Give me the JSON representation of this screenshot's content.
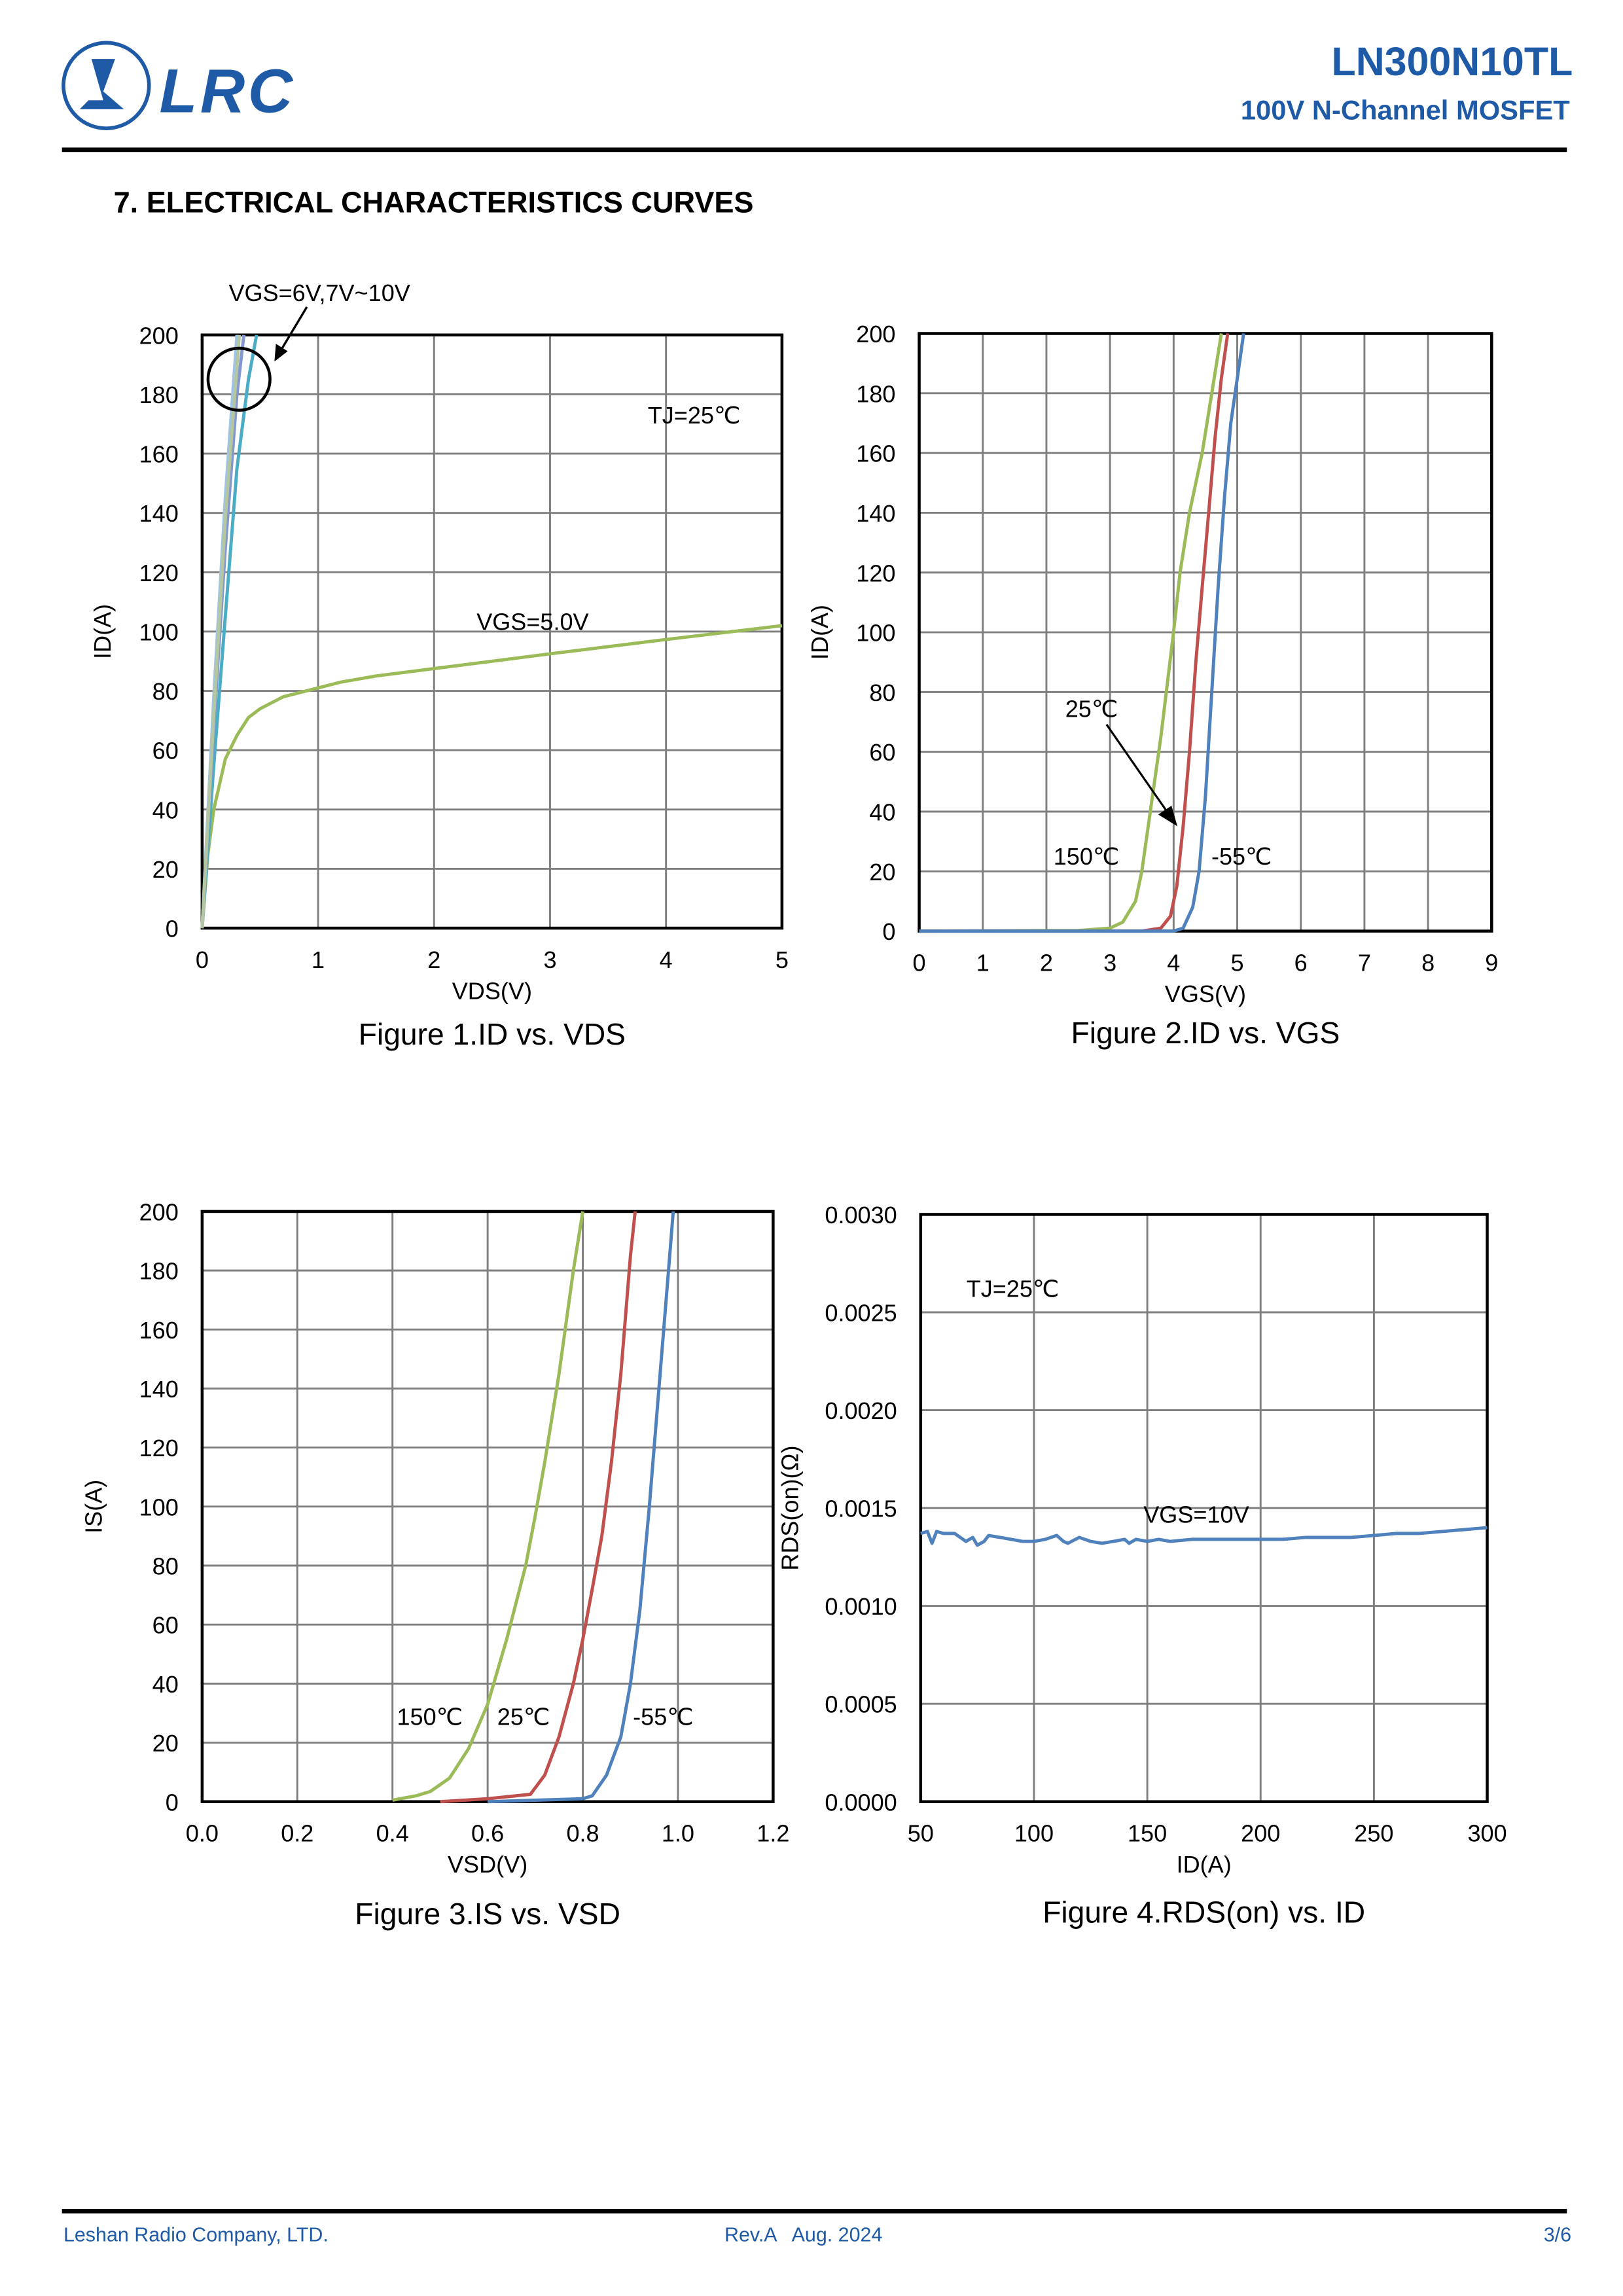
{
  "header": {
    "logo_text": "LRC",
    "part_number": "LN300N10TL",
    "subtitle": "100V N-Channel MOSFET",
    "brand_color": "#1f5aa6"
  },
  "section_title": "7. ELECTRICAL CHARACTERISTICS CURVES",
  "footer": {
    "company": "Leshan Radio Company, LTD.",
    "revision": "Rev.A   Aug. 2024",
    "page": "3/6"
  },
  "chart_data": [
    {
      "type": "line",
      "title": "Figure 1.ID vs. VDS",
      "xlabel": "VDS(V)",
      "ylabel": "ID(A)",
      "xlim": [
        0,
        5
      ],
      "ylim": [
        0,
        200
      ],
      "xticks": [
        "0",
        "1",
        "2",
        "3",
        "4",
        "5"
      ],
      "yticks": [
        "0",
        "20",
        "40",
        "60",
        "80",
        "100",
        "120",
        "140",
        "160",
        "180",
        "200"
      ],
      "grid": true,
      "annotations": [
        "VGS=6V,7V~10V",
        "TJ=25℃",
        "VGS=5.0V"
      ],
      "series": [
        {
          "color": "#9bbb59",
          "x": [
            0,
            0.05,
            0.1,
            0.2,
            0.3,
            0.4,
            0.5,
            0.7,
            1.0,
            1.2,
            1.5,
            2,
            3,
            4,
            5
          ],
          "y": [
            0,
            25,
            40,
            57,
            65,
            71,
            74,
            78,
            81,
            83,
            85,
            87.5,
            92.5,
            97.3,
            102
          ]
        },
        {
          "color": "#4bacc6",
          "x": [
            0,
            0.1,
            0.2,
            0.3,
            0.4,
            0.47
          ],
          "y": [
            0,
            55,
            105,
            155,
            185,
            200
          ]
        },
        {
          "color": "#8497d0",
          "x": [
            0,
            0.1,
            0.2,
            0.3,
            0.36
          ],
          "y": [
            0,
            68,
            128,
            180,
            200
          ]
        },
        {
          "color": "#a5a5a5",
          "x": [
            0,
            0.1,
            0.2,
            0.31
          ],
          "y": [
            0,
            75,
            140,
            200
          ]
        },
        {
          "color": "#9dc3e6",
          "x": [
            0,
            0.1,
            0.2,
            0.3
          ],
          "y": [
            0,
            78,
            145,
            200
          ]
        },
        {
          "color": "#b4c7a0",
          "x": [
            0,
            0.1,
            0.2,
            0.32
          ],
          "y": [
            0,
            72,
            138,
            200
          ]
        }
      ]
    },
    {
      "type": "line",
      "title": "Figure 2.ID vs. VGS",
      "xlabel": "VGS(V)",
      "ylabel": "ID(A)",
      "xlim": [
        0,
        9
      ],
      "ylim": [
        0,
        200
      ],
      "xticks": [
        "0",
        "1",
        "2",
        "3",
        "4",
        "5",
        "6",
        "7",
        "8",
        "9"
      ],
      "yticks": [
        "0",
        "20",
        "40",
        "60",
        "80",
        "100",
        "120",
        "140",
        "160",
        "180",
        "200"
      ],
      "grid": true,
      "annotations": [
        "25℃",
        "150℃",
        "-55℃"
      ],
      "series": [
        {
          "name": "150℃",
          "color": "#9bbb59",
          "x": [
            0,
            2.5,
            3,
            3.2,
            3.4,
            3.5,
            3.6,
            3.8,
            4.0,
            4.1,
            4.25,
            4.45,
            4.6,
            4.75
          ],
          "y": [
            0,
            0.2,
            1,
            3,
            10,
            20,
            35,
            65,
            100,
            120,
            140,
            160,
            180,
            200
          ]
        },
        {
          "name": "25℃",
          "color": "#c0504d",
          "x": [
            0,
            3.5,
            3.8,
            3.95,
            4.05,
            4.15,
            4.25,
            4.35,
            4.45,
            4.55,
            4.65,
            4.75,
            4.85
          ],
          "y": [
            0,
            0,
            1,
            5,
            15,
            35,
            60,
            90,
            115,
            140,
            165,
            185,
            200
          ]
        },
        {
          "name": "-55℃",
          "color": "#4f81bd",
          "x": [
            0,
            4.0,
            4.15,
            4.3,
            4.4,
            4.5,
            4.6,
            4.7,
            4.8,
            4.9,
            5.0,
            5.1
          ],
          "y": [
            0,
            0,
            1,
            8,
            20,
            45,
            80,
            115,
            145,
            170,
            185,
            200
          ]
        }
      ]
    },
    {
      "type": "line",
      "title": "Figure 3.IS vs. VSD",
      "xlabel": "VSD(V)",
      "ylabel": "IS(A)",
      "xlim": [
        0,
        1.2
      ],
      "ylim": [
        0,
        200
      ],
      "xticks": [
        "0.0",
        "0.2",
        "0.4",
        "0.6",
        "0.8",
        "1.0",
        "1.2"
      ],
      "yticks": [
        "0",
        "20",
        "40",
        "60",
        "80",
        "100",
        "120",
        "140",
        "160",
        "180",
        "200"
      ],
      "grid": true,
      "annotations": [
        "150℃",
        "25℃",
        "-55℃"
      ],
      "series": [
        {
          "name": "150℃",
          "color": "#9bbb59",
          "x": [
            0.4,
            0.45,
            0.48,
            0.52,
            0.56,
            0.6,
            0.64,
            0.68,
            0.7,
            0.72,
            0.75,
            0.78,
            0.8
          ],
          "y": [
            0.5,
            2,
            3.5,
            8,
            18,
            33,
            55,
            80,
            97,
            115,
            145,
            180,
            200
          ]
        },
        {
          "name": "25℃",
          "color": "#c0504d",
          "x": [
            0.5,
            0.6,
            0.69,
            0.72,
            0.75,
            0.78,
            0.8,
            0.82,
            0.84,
            0.86,
            0.88,
            0.9,
            0.91
          ],
          "y": [
            0,
            1,
            2.5,
            9,
            22,
            40,
            55,
            72,
            90,
            115,
            145,
            185,
            200
          ]
        },
        {
          "name": "-55℃",
          "color": "#4f81bd",
          "x": [
            0.6,
            0.8,
            0.82,
            0.85,
            0.88,
            0.9,
            0.92,
            0.94,
            0.96,
            0.98,
            0.99
          ],
          "y": [
            0,
            1,
            2,
            9,
            22,
            40,
            65,
            100,
            140,
            180,
            200
          ]
        }
      ]
    },
    {
      "type": "line",
      "title": "Figure 4.RDS(on) vs. ID",
      "xlabel": "ID(A)",
      "ylabel": "RDS(on)(Ω)",
      "xlim": [
        50,
        300
      ],
      "ylim": [
        0,
        0.003
      ],
      "xticks": [
        "50",
        "100",
        "150",
        "200",
        "250",
        "300"
      ],
      "yticks": [
        "0.0000",
        "0.0005",
        "0.0010",
        "0.0015",
        "0.0020",
        "0.0025",
        "0.0030"
      ],
      "grid": true,
      "annotations": [
        "TJ=25℃",
        "VGS=10V"
      ],
      "series": [
        {
          "name": "VGS=10V",
          "color": "#4f81bd",
          "x": [
            50,
            53,
            55,
            57,
            60,
            65,
            70,
            73,
            75,
            78,
            80,
            85,
            90,
            95,
            100,
            105,
            110,
            113,
            115,
            120,
            125,
            130,
            135,
            140,
            142,
            145,
            150,
            155,
            160,
            170,
            180,
            190,
            200,
            210,
            220,
            230,
            240,
            250,
            260,
            270,
            280,
            290,
            300
          ],
          "y": [
            0.00137,
            0.00138,
            0.00132,
            0.00138,
            0.00137,
            0.00137,
            0.00133,
            0.00135,
            0.00131,
            0.00133,
            0.00136,
            0.00135,
            0.00134,
            0.00133,
            0.00133,
            0.00134,
            0.00136,
            0.00133,
            0.00132,
            0.00135,
            0.00133,
            0.00132,
            0.00133,
            0.00134,
            0.00132,
            0.00134,
            0.00133,
            0.00134,
            0.00133,
            0.00134,
            0.00134,
            0.00134,
            0.00134,
            0.00134,
            0.00135,
            0.00135,
            0.00135,
            0.00136,
            0.00137,
            0.00137,
            0.00138,
            0.00139,
            0.0014
          ]
        }
      ]
    }
  ]
}
